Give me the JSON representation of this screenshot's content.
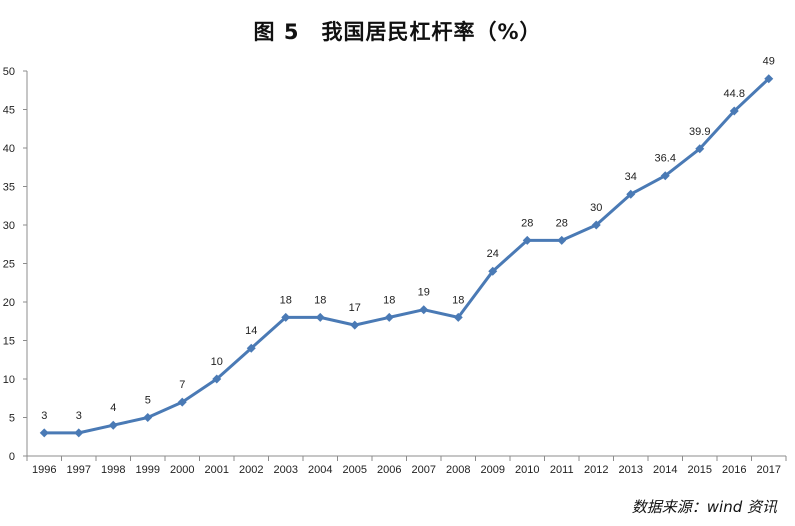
{
  "chart_data": {
    "type": "line",
    "title": "图 5　我国居民杠杆率（%）",
    "xlabel": "",
    "ylabel": "",
    "categories": [
      "1996",
      "1997",
      "1998",
      "1999",
      "2000",
      "2001",
      "2002",
      "2003",
      "2004",
      "2005",
      "2006",
      "2007",
      "2008",
      "2009",
      "2010",
      "2011",
      "2012",
      "2013",
      "2014",
      "2015",
      "2016",
      "2017"
    ],
    "series": [
      {
        "values": [
          3,
          3,
          4,
          5,
          7,
          10,
          14,
          18,
          18,
          17,
          18,
          19,
          18,
          24,
          28,
          28,
          30,
          34,
          36.4,
          39.9,
          44.8,
          49
        ],
        "labels": [
          "3",
          "3",
          "4",
          "5",
          "7",
          "10",
          "14",
          "18",
          "18",
          "17",
          "18",
          "19",
          "18",
          "24",
          "28",
          "28",
          "30",
          "34",
          "36.4",
          "39.9",
          "44.8",
          "49"
        ],
        "color": "#4a7ab5"
      }
    ],
    "ylim": [
      0,
      50
    ],
    "yticks": [
      0,
      5,
      10,
      15,
      20,
      25,
      30,
      35,
      40,
      45,
      50
    ],
    "grid": false,
    "legend": "none",
    "axis_color": "#8c8c8c"
  },
  "source": "数据来源：wind 资讯"
}
